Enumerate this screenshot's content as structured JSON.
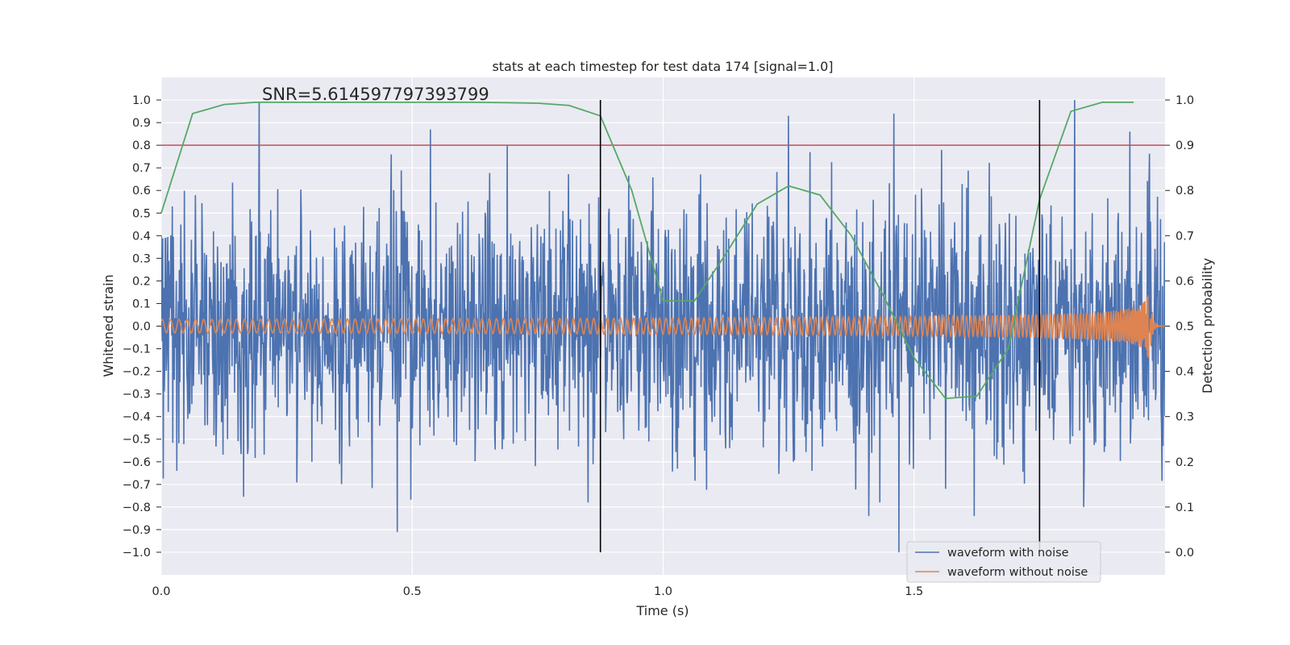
{
  "chart_data": {
    "type": "line",
    "title": "stats at each timestep for test data 174 [signal=1.0]",
    "xlabel": "Time (s)",
    "ylabel": "Whitened strain",
    "ylabel_right": "Detection probability",
    "xlim": [
      0.0,
      2.0
    ],
    "ylim": [
      -1.1,
      1.1
    ],
    "ylim_right": [
      -0.05,
      1.05
    ],
    "x_ticks": [
      0.0,
      0.5,
      1.0,
      1.5
    ],
    "x_tick_labels": [
      "0.0",
      "0.5",
      "1.0",
      "1.5"
    ],
    "y_ticks": [
      1.0,
      0.9,
      0.8,
      0.7,
      0.6,
      0.5,
      0.4,
      0.3,
      0.2,
      0.1,
      0.0,
      -0.1,
      -0.2,
      -0.3,
      -0.4,
      -0.5,
      -0.6,
      -0.7,
      -0.8,
      -0.9,
      -1.0
    ],
    "y_tick_labels": [
      "1.0",
      "0.9",
      "0.8",
      "0.7",
      "0.6",
      "0.5",
      "0.4",
      "0.3",
      "0.2",
      "0.1",
      "0.0",
      "−0.1",
      "−0.2",
      "−0.3",
      "−0.4",
      "−0.5",
      "−0.6",
      "−0.7",
      "−0.8",
      "−0.9",
      "−1.0"
    ],
    "y_right_ticks": [
      1.0,
      0.9,
      0.8,
      0.7,
      0.6,
      0.5,
      0.4,
      0.3,
      0.2,
      0.1,
      0.0
    ],
    "y_right_tick_labels": [
      "1.0",
      "0.9",
      "0.8",
      "0.7",
      "0.6",
      "0.5",
      "0.4",
      "0.3",
      "0.2",
      "0.1",
      "0.0"
    ],
    "annotation": "SNR=5.614597797393799",
    "threshold": {
      "axis": "right",
      "value": 0.9,
      "color": "#c44e52"
    },
    "vertical_lines": [
      0.875,
      1.75
    ],
    "grid": true,
    "legend_position": "lower-right",
    "series": [
      {
        "name": "waveform with noise",
        "axis": "left",
        "color": "#4c72b0",
        "noise_amplitude": 0.28,
        "extrema": [
          [
            0.195,
            0.99
          ],
          [
            0.47,
            -0.91
          ],
          [
            0.536,
            0.87
          ],
          [
            0.85,
            -0.78
          ],
          [
            1.25,
            0.93
          ],
          [
            1.41,
            -0.84
          ],
          [
            1.46,
            0.94
          ],
          [
            1.47,
            -1.0
          ],
          [
            1.62,
            -0.84
          ],
          [
            1.82,
            1.0
          ],
          [
            1.93,
            0.86
          ]
        ]
      },
      {
        "name": "waveform without noise",
        "axis": "left",
        "color": "#dd8452",
        "amplitude_start": 0.03,
        "amplitude_peak": 0.14,
        "merger_time": 1.97,
        "ringdown_end": 1.99
      },
      {
        "name": "detection probability",
        "axis": "right",
        "color": "#55a868",
        "x": [
          0.0,
          0.0625,
          0.125,
          0.1875,
          0.25,
          0.3125,
          0.375,
          0.4375,
          0.5,
          0.5625,
          0.625,
          0.6875,
          0.75,
          0.8125,
          0.875,
          0.9375,
          1.0,
          1.0625,
          1.125,
          1.1875,
          1.25,
          1.3125,
          1.375,
          1.4375,
          1.5,
          1.5625,
          1.625,
          1.6875,
          1.75,
          1.8125,
          1.875,
          1.9375
        ],
        "values": [
          0.75,
          0.97,
          0.99,
          0.995,
          0.995,
          0.995,
          0.995,
          0.995,
          0.995,
          0.995,
          0.995,
          0.994,
          0.993,
          0.988,
          0.965,
          0.8,
          0.556,
          0.556,
          0.66,
          0.77,
          0.81,
          0.79,
          0.7,
          0.57,
          0.43,
          0.34,
          0.345,
          0.45,
          0.78,
          0.975,
          0.995,
          0.995
        ]
      }
    ]
  }
}
